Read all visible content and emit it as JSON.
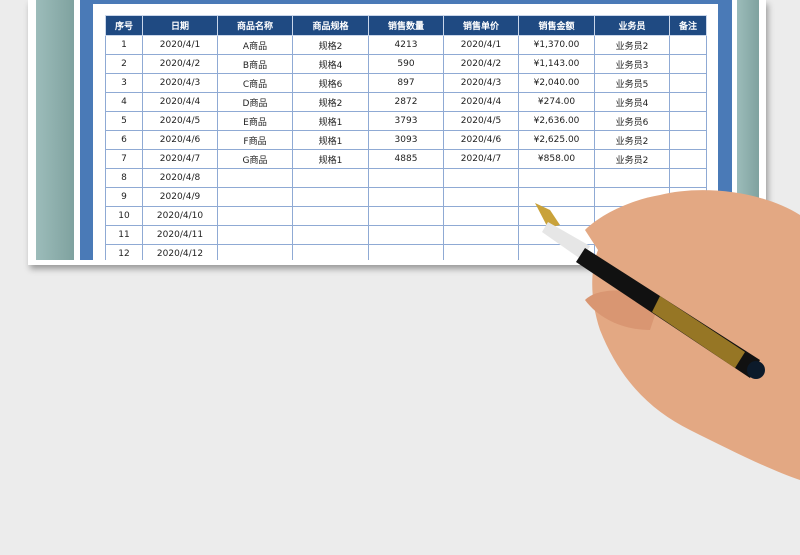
{
  "table": {
    "headers": [
      "序号",
      "日期",
      "商品名称",
      "商品规格",
      "销售数量",
      "销售单价",
      "销售金额",
      "业务员",
      "备注"
    ],
    "rows": [
      [
        "1",
        "2020/4/1",
        "A商品",
        "规格2",
        "4213",
        "2020/4/1",
        "¥1,370.00",
        "业务员2",
        ""
      ],
      [
        "2",
        "2020/4/2",
        "B商品",
        "规格4",
        "590",
        "2020/4/2",
        "¥1,143.00",
        "业务员3",
        ""
      ],
      [
        "3",
        "2020/4/3",
        "C商品",
        "规格6",
        "897",
        "2020/4/3",
        "¥2,040.00",
        "业务员5",
        ""
      ],
      [
        "4",
        "2020/4/4",
        "D商品",
        "规格2",
        "2872",
        "2020/4/4",
        "¥274.00",
        "业务员4",
        ""
      ],
      [
        "5",
        "2020/4/5",
        "E商品",
        "规格1",
        "3793",
        "2020/4/5",
        "¥2,636.00",
        "业务员6",
        ""
      ],
      [
        "6",
        "2020/4/6",
        "F商品",
        "规格1",
        "3093",
        "2020/4/6",
        "¥2,625.00",
        "业务员2",
        ""
      ],
      [
        "7",
        "2020/4/7",
        "G商品",
        "规格1",
        "4885",
        "2020/4/7",
        "¥858.00",
        "业务员2",
        ""
      ],
      [
        "8",
        "2020/4/8",
        "",
        "",
        "",
        "",
        "",
        "",
        ""
      ],
      [
        "9",
        "2020/4/9",
        "",
        "",
        "",
        "",
        "",
        "",
        ""
      ],
      [
        "10",
        "2020/4/10",
        "",
        "",
        "",
        "",
        "",
        "",
        ""
      ],
      [
        "11",
        "2020/4/11",
        "",
        "",
        "",
        "",
        "",
        "",
        ""
      ],
      [
        "12",
        "2020/4/12",
        "",
        "",
        "",
        "",
        "",
        "",
        ""
      ]
    ]
  },
  "colors": {
    "header_bg": "#1f4a82",
    "frame_blue": "#4a7ab7",
    "frame_teal": "#8fb0ad",
    "grid": "#8faad4"
  }
}
